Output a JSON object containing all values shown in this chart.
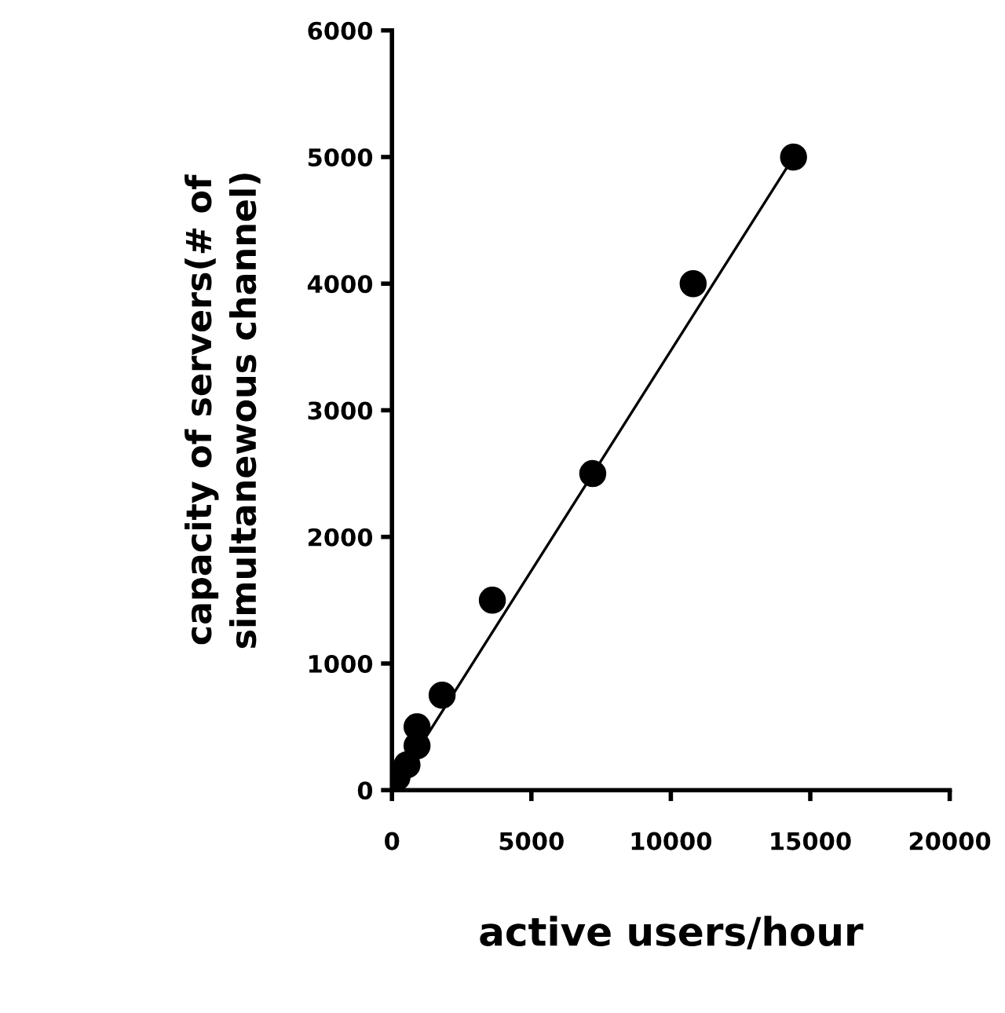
{
  "chart_data": {
    "type": "scatter",
    "xlabel": "active users/hour",
    "ylabel": "capacity of servers(# of\nsimultanewous channel)",
    "xlim": [
      0,
      20000
    ],
    "xticks": [
      0,
      5000,
      10000,
      15000,
      20000
    ],
    "ylim": [
      0,
      6000
    ],
    "yticks": [
      0,
      1000,
      2000,
      3000,
      4000,
      5000,
      6000
    ],
    "series": [
      {
        "color": "#000000",
        "marker": "circle",
        "x": [
          180,
          540,
          900,
          900,
          1800,
          3600,
          7200,
          10800,
          14400
        ],
        "values": [
          100,
          200,
          350,
          500,
          750,
          1500,
          2500,
          4000,
          5000
        ]
      },
      {
        "type": "line",
        "color": "#000000",
        "line_style": "solid",
        "x": [
          300,
          14400
        ],
        "values": [
          100,
          5000
        ]
      }
    ]
  }
}
